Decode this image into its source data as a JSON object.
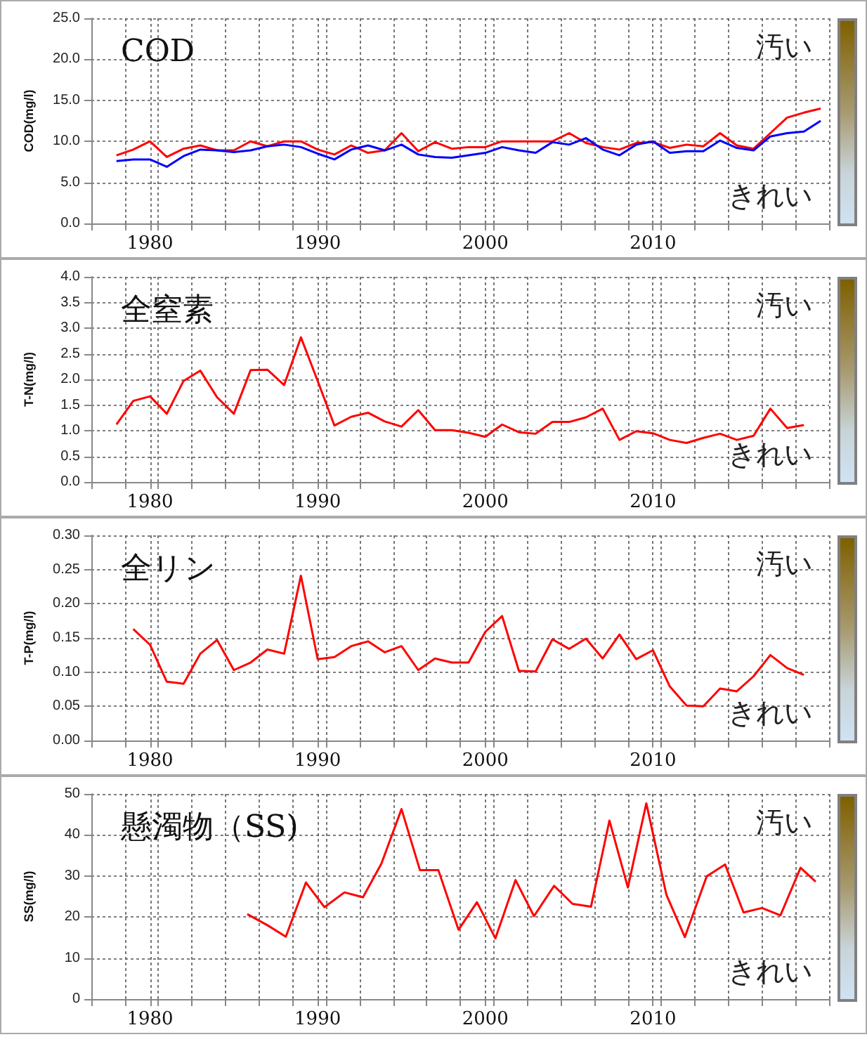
{
  "chart_data": [
    {
      "type": "line",
      "title": "COD",
      "ylabel": "COD(mg/l)",
      "annotations": [
        "汚い",
        "きれい"
      ],
      "x": [
        1978,
        1979,
        1980,
        1981,
        1982,
        1983,
        1984,
        1985,
        1986,
        1987,
        1988,
        1989,
        1990,
        1991,
        1992,
        1993,
        1994,
        1995,
        1996,
        1997,
        1998,
        1999,
        2000,
        2001,
        2002,
        2003,
        2004,
        2005,
        2006,
        2007,
        2008,
        2009,
        2010,
        2011,
        2012,
        2013,
        2014,
        2015,
        2016,
        2017,
        2018,
        2019,
        2020
      ],
      "series": [
        {
          "color": "#ff0000",
          "values": [
            8.3,
            9.0,
            10.0,
            8.1,
            9.1,
            9.5,
            8.9,
            8.9,
            10.0,
            9.4,
            10.0,
            10.0,
            9.0,
            8.4,
            9.5,
            8.6,
            8.9,
            11.0,
            8.8,
            9.9,
            9.1,
            9.3,
            9.3,
            10.0,
            10.0,
            10.0,
            10.0,
            11.0,
            9.8,
            9.3,
            9.0,
            9.8,
            9.9,
            9.2,
            9.6,
            9.4,
            11.0,
            9.5,
            9.1,
            11.0,
            12.9,
            13.5,
            14.0
          ]
        },
        {
          "color": "#0000ff",
          "values": [
            7.6,
            7.8,
            7.8,
            6.9,
            8.2,
            9.0,
            8.9,
            8.7,
            8.9,
            9.4,
            9.6,
            9.3,
            8.5,
            7.8,
            9.0,
            9.5,
            8.9,
            9.6,
            8.4,
            8.1,
            8.0,
            8.3,
            8.6,
            9.3,
            8.9,
            8.6,
            9.9,
            9.6,
            10.4,
            9.0,
            8.3,
            9.6,
            10.0,
            8.6,
            8.8,
            8.8,
            10.1,
            9.2,
            8.9,
            10.6,
            11.0,
            11.2,
            12.5
          ]
        }
      ],
      "xlim": [
        1976.5,
        2020.5
      ],
      "xticks": [
        {
          "value": 1978.5,
          "label": null
        },
        1980,
        {
          "value": 1980.5,
          "label": null
        },
        {
          "value": 1982.5,
          "label": null
        },
        {
          "value": 1984.5,
          "label": null
        },
        {
          "value": 1986.5,
          "label": null
        },
        {
          "value": 1988.5,
          "label": null
        },
        1990,
        {
          "value": 1990.5,
          "label": null
        },
        {
          "value": 1992.5,
          "label": null
        },
        {
          "value": 1994.5,
          "label": null
        },
        {
          "value": 1996.5,
          "label": null
        },
        {
          "value": 1998.5,
          "label": null
        },
        2000,
        {
          "value": 2000.5,
          "label": null
        },
        {
          "value": 2002.5,
          "label": null
        },
        {
          "value": 2004.5,
          "label": null
        },
        {
          "value": 2006.5,
          "label": null
        },
        {
          "value": 2008.5,
          "label": null
        },
        2010,
        {
          "value": 2010.5,
          "label": null
        },
        {
          "value": 2012.5,
          "label": null
        },
        {
          "value": 2014.5,
          "label": null
        },
        {
          "value": 2016.5,
          "label": null
        },
        {
          "value": 2018.5,
          "label": null
        }
      ],
      "ylim": [
        0,
        25
      ],
      "yticks": [
        {
          "value": 0,
          "label": "0.0"
        },
        {
          "value": 5,
          "label": "5.0"
        },
        {
          "value": 10,
          "label": "10.0"
        },
        {
          "value": 15,
          "label": "15.0"
        },
        {
          "value": 20,
          "label": "20.0"
        },
        {
          "value": 25,
          "label": "25.0"
        }
      ],
      "grid": true,
      "line_style": "solid",
      "marker": "none"
    },
    {
      "type": "line",
      "title": "全窒素",
      "ylabel": "T-N(mg/l)",
      "annotations": [
        "汚い",
        "きれい"
      ],
      "x": [
        1978,
        1979,
        1980,
        1981,
        1982,
        1983,
        1984,
        1985,
        1986,
        1987,
        1988,
        1989,
        1990,
        1991,
        1992,
        1993,
        1994,
        1995,
        1996,
        1997,
        1998,
        1999,
        2000,
        2001,
        2002,
        2003,
        2004,
        2005,
        2006,
        2007,
        2008,
        2009,
        2010,
        2011,
        2012,
        2013,
        2014,
        2015,
        2016,
        2017,
        2018,
        2019
      ],
      "series": [
        {
          "color": "#ff0000",
          "values": [
            1.12,
            1.58,
            1.67,
            1.33,
            1.97,
            2.17,
            1.65,
            1.33,
            2.18,
            2.19,
            1.89,
            2.82,
            1.97,
            1.1,
            1.27,
            1.35,
            1.18,
            1.08,
            1.4,
            1.01,
            1.01,
            0.96,
            0.88,
            1.12,
            0.97,
            0.94,
            1.17,
            1.17,
            1.26,
            1.43,
            0.82,
            0.99,
            0.95,
            0.82,
            0.76,
            0.86,
            0.94,
            0.82,
            0.9,
            1.43,
            1.05,
            1.11
          ]
        }
      ],
      "xlim": [
        1976.5,
        2020.5
      ],
      "xticks": [
        {
          "value": 1978.5,
          "label": null
        },
        1980,
        {
          "value": 1980.5,
          "label": null
        },
        {
          "value": 1982.5,
          "label": null
        },
        {
          "value": 1984.5,
          "label": null
        },
        {
          "value": 1986.5,
          "label": null
        },
        {
          "value": 1988.5,
          "label": null
        },
        1990,
        {
          "value": 1990.5,
          "label": null
        },
        {
          "value": 1992.5,
          "label": null
        },
        {
          "value": 1994.5,
          "label": null
        },
        {
          "value": 1996.5,
          "label": null
        },
        {
          "value": 1998.5,
          "label": null
        },
        2000,
        {
          "value": 2000.5,
          "label": null
        },
        {
          "value": 2002.5,
          "label": null
        },
        {
          "value": 2004.5,
          "label": null
        },
        {
          "value": 2006.5,
          "label": null
        },
        {
          "value": 2008.5,
          "label": null
        },
        2010,
        {
          "value": 2010.5,
          "label": null
        },
        {
          "value": 2012.5,
          "label": null
        },
        {
          "value": 2014.5,
          "label": null
        },
        {
          "value": 2016.5,
          "label": null
        },
        {
          "value": 2018.5,
          "label": null
        }
      ],
      "ylim": [
        0,
        4
      ],
      "yticks": [
        {
          "value": 0,
          "label": "0.0"
        },
        {
          "value": 0.5,
          "label": "0.5"
        },
        {
          "value": 1,
          "label": "1.0"
        },
        {
          "value": 1.5,
          "label": "1.5"
        },
        {
          "value": 2,
          "label": "2.0"
        },
        {
          "value": 2.5,
          "label": "2.5"
        },
        {
          "value": 3,
          "label": "3.0"
        },
        {
          "value": 3.5,
          "label": "3.5"
        },
        {
          "value": 4,
          "label": "4.0"
        }
      ],
      "grid": true,
      "line_style": "solid",
      "marker": "none"
    },
    {
      "type": "line",
      "title": "全リン",
      "ylabel": "T-P(mg/l)",
      "annotations": [
        "汚い",
        "きれい"
      ],
      "x": [
        1979,
        1980,
        1981,
        1982,
        1983,
        1984,
        1985,
        1986,
        1987,
        1988,
        1989,
        1990,
        1991,
        1992,
        1993,
        1994,
        1995,
        1996,
        1997,
        1998,
        1999,
        2000,
        2001,
        2002,
        2003,
        2004,
        2005,
        2006,
        2007,
        2008,
        2009,
        2010,
        2011,
        2012,
        2013,
        2014,
        2015,
        2016,
        2017,
        2018,
        2019
      ],
      "series": [
        {
          "color": "#ff0000",
          "values": [
            0.163,
            0.14,
            0.086,
            0.083,
            0.127,
            0.147,
            0.103,
            0.114,
            0.133,
            0.127,
            0.241,
            0.119,
            0.122,
            0.138,
            0.145,
            0.129,
            0.138,
            0.103,
            0.12,
            0.114,
            0.114,
            0.159,
            0.182,
            0.102,
            0.101,
            0.148,
            0.134,
            0.149,
            0.12,
            0.155,
            0.119,
            0.132,
            0.079,
            0.051,
            0.05,
            0.076,
            0.072,
            0.094,
            0.125,
            0.106,
            0.096
          ]
        }
      ],
      "xlim": [
        1976.5,
        2020.5
      ],
      "xticks": [
        {
          "value": 1978.5,
          "label": null
        },
        1980,
        {
          "value": 1980.5,
          "label": null
        },
        {
          "value": 1982.5,
          "label": null
        },
        {
          "value": 1984.5,
          "label": null
        },
        {
          "value": 1986.5,
          "label": null
        },
        {
          "value": 1988.5,
          "label": null
        },
        1990,
        {
          "value": 1990.5,
          "label": null
        },
        {
          "value": 1992.5,
          "label": null
        },
        {
          "value": 1994.5,
          "label": null
        },
        {
          "value": 1996.5,
          "label": null
        },
        {
          "value": 1998.5,
          "label": null
        },
        2000,
        {
          "value": 2000.5,
          "label": null
        },
        {
          "value": 2002.5,
          "label": null
        },
        {
          "value": 2004.5,
          "label": null
        },
        {
          "value": 2006.5,
          "label": null
        },
        {
          "value": 2008.5,
          "label": null
        },
        2010,
        {
          "value": 2010.5,
          "label": null
        },
        {
          "value": 2012.5,
          "label": null
        },
        {
          "value": 2014.5,
          "label": null
        },
        {
          "value": 2016.5,
          "label": null
        },
        {
          "value": 2018.5,
          "label": null
        }
      ],
      "ylim": [
        0,
        0.3
      ],
      "yticks": [
        {
          "value": 0,
          "label": "0.00"
        },
        {
          "value": 0.05,
          "label": "0.05"
        },
        {
          "value": 0.1,
          "label": "0.10"
        },
        {
          "value": 0.15,
          "label": "0.15"
        },
        {
          "value": 0.2,
          "label": "0.20"
        },
        {
          "value": 0.25,
          "label": "0.25"
        },
        {
          "value": 0.3,
          "label": "0.30"
        }
      ],
      "grid": true,
      "line_style": "solid",
      "marker": "none"
    },
    {
      "type": "line",
      "title": "懸濁物（SS)",
      "ylabel": "SS(mg/l)",
      "annotations": [
        "汚い",
        "きれい"
      ],
      "x": [
        1985.8,
        1987.0,
        1988.1,
        1989.3,
        1990.4,
        1991.6,
        1992.7,
        1993.8,
        1995.0,
        1996.1,
        1997.2,
        1998.4,
        1999.5,
        2000.6,
        2001.8,
        2002.9,
        2004.1,
        2005.2,
        2006.3,
        2007.4,
        2008.5,
        2009.6,
        2010.8,
        2011.9,
        2013.2,
        2014.3,
        2015.4,
        2016.5,
        2017.6,
        2018.8,
        2019.7
      ],
      "series": [
        {
          "color": "#ff0000",
          "values": [
            20.7,
            18.0,
            15.2,
            28.4,
            22.4,
            26.0,
            24.8,
            33.0,
            46.3,
            31.4,
            31.4,
            16.9,
            23.6,
            14.8,
            29.0,
            20.2,
            27.6,
            23.2,
            22.5,
            43.5,
            27.2,
            47.7,
            25.4,
            15.1,
            29.9,
            32.8,
            21.1,
            22.2,
            20.4,
            32.0,
            28.6
          ]
        }
      ],
      "xlim": [
        1976.5,
        2020.5
      ],
      "xticks": [
        {
          "value": 1978.5,
          "label": null
        },
        1980,
        {
          "value": 1980.5,
          "label": null
        },
        {
          "value": 1982.5,
          "label": null
        },
        {
          "value": 1984.5,
          "label": null
        },
        {
          "value": 1986.5,
          "label": null
        },
        {
          "value": 1988.5,
          "label": null
        },
        1990,
        {
          "value": 1990.5,
          "label": null
        },
        {
          "value": 1992.5,
          "label": null
        },
        {
          "value": 1994.5,
          "label": null
        },
        {
          "value": 1996.5,
          "label": null
        },
        {
          "value": 1998.5,
          "label": null
        },
        2000,
        {
          "value": 2000.5,
          "label": null
        },
        {
          "value": 2002.5,
          "label": null
        },
        {
          "value": 2004.5,
          "label": null
        },
        {
          "value": 2006.5,
          "label": null
        },
        {
          "value": 2008.5,
          "label": null
        },
        2010,
        {
          "value": 2010.5,
          "label": null
        },
        {
          "value": 2012.5,
          "label": null
        },
        {
          "value": 2014.5,
          "label": null
        },
        {
          "value": 2016.5,
          "label": null
        },
        {
          "value": 2018.5,
          "label": null
        }
      ],
      "ylim": [
        0,
        50
      ],
      "yticks": [
        0,
        10,
        20,
        30,
        40,
        50
      ],
      "grid": true,
      "line_style": "solid",
      "marker": "none"
    }
  ]
}
